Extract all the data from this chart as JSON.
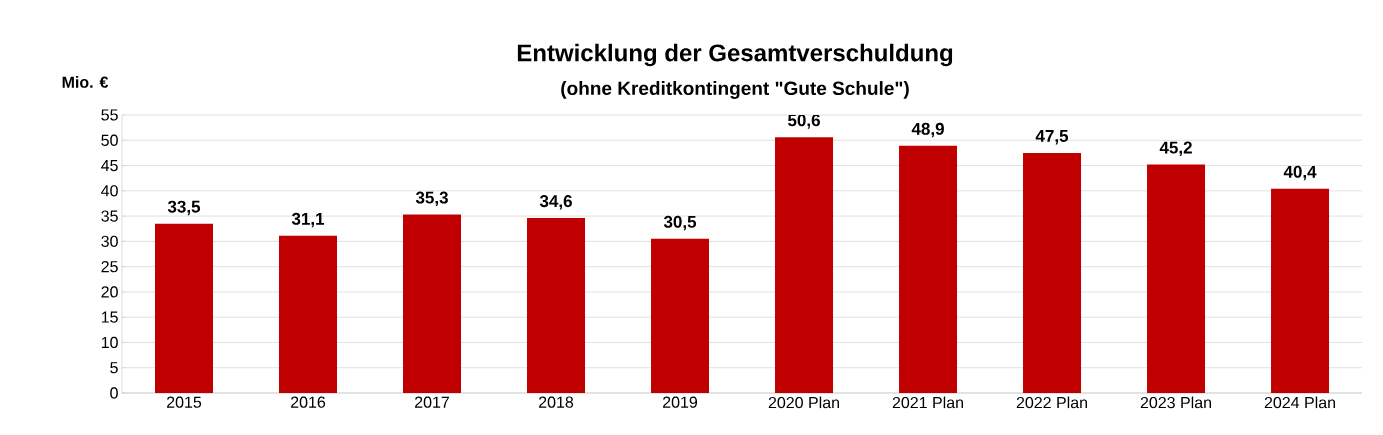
{
  "chart_data": {
    "type": "bar",
    "title": "Entwicklung der Gesamtverschuldung",
    "subtitle": "(ohne Kreditkontingent \"Gute Schule\")",
    "ylabel": "Mio. €",
    "categories": [
      "2015",
      "2016",
      "2017",
      "2018",
      "2019",
      "2020 Plan",
      "2021 Plan",
      "2022 Plan",
      "2023 Plan",
      "2024 Plan"
    ],
    "values": [
      33.5,
      31.1,
      35.3,
      34.6,
      30.5,
      50.6,
      48.9,
      47.5,
      45.2,
      40.4
    ],
    "value_labels": [
      "33,5",
      "31,1",
      "35,3",
      "34,6",
      "30,5",
      "50,6",
      "48,9",
      "47,5",
      "45,2",
      "40,4"
    ],
    "color": "#c00000",
    "ylim": [
      0,
      55
    ],
    "yticks": [
      0,
      5,
      10,
      15,
      20,
      25,
      30,
      35,
      40,
      45,
      50,
      55
    ],
    "grid": "y"
  }
}
